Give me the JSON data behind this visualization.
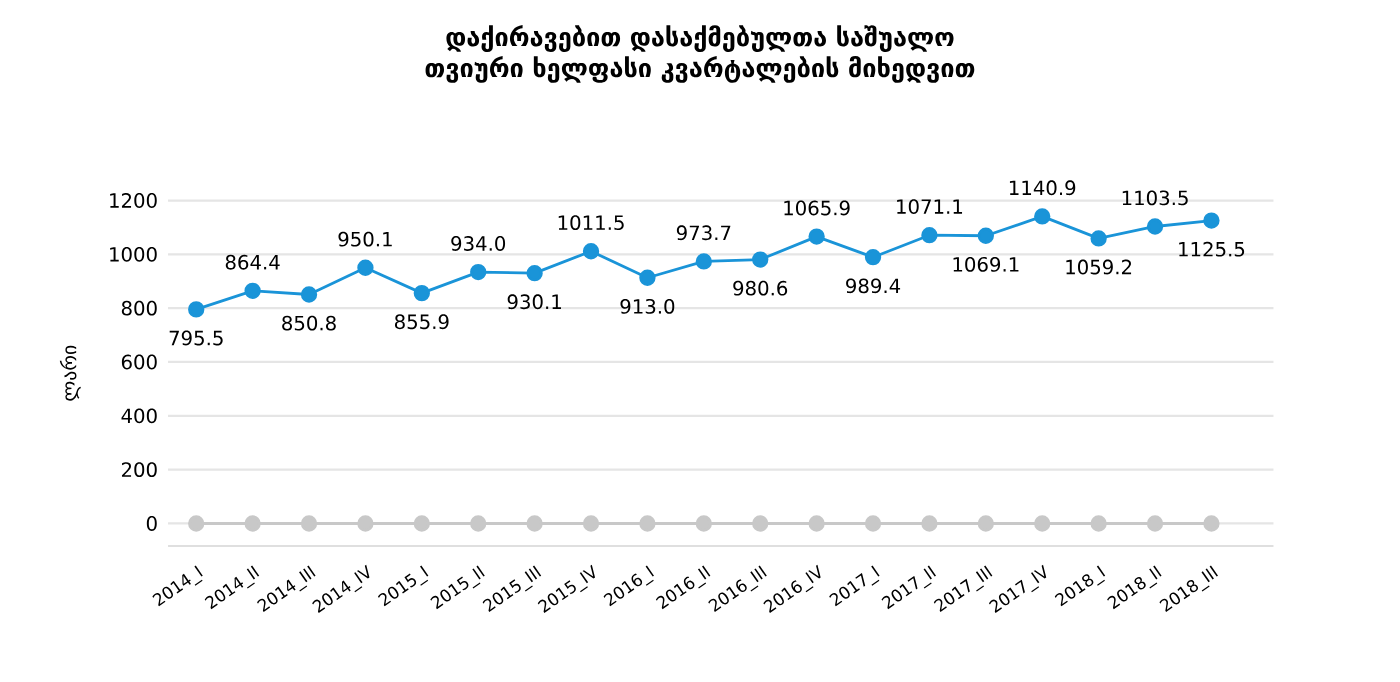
{
  "chart_data": {
    "type": "line",
    "title": "დაქირავებით დასაქმებულთა საშუალო თვიური ხელფასი კვარტალების მიხედვით",
    "ylabel": "ლარი",
    "categories": [
      "2014_I",
      "2014_II",
      "2014_III",
      "2014_IV",
      "2015_I",
      "2015_II",
      "2015_III",
      "2015_IV",
      "2016_I",
      "2016_II",
      "2016_III",
      "2016_IV",
      "2017_I",
      "2017_II",
      "2017_III",
      "2017_IV",
      "2018_I",
      "2018_II",
      "2018_III"
    ],
    "series": [
      {
        "color": "#1a94d8",
        "values": [
          795.5,
          864.4,
          850.8,
          950.1,
          855.9,
          934.0,
          930.1,
          1011.5,
          913.0,
          973.7,
          980.6,
          1065.9,
          989.4,
          1071.1,
          1069.1,
          1140.9,
          1059.2,
          1103.5,
          1125.5
        ],
        "value_labels": [
          "795.5",
          "864.4",
          "850.8",
          "950.1",
          "855.9",
          "934.0",
          "930.1",
          "1011.5",
          "913.0",
          "973.7",
          "980.6",
          "1065.9",
          "989.4",
          "1071.1",
          "1069.1",
          "1140.9",
          "1059.2",
          "1103.5",
          "1125.5"
        ]
      },
      {
        "color": "#c8c8c8",
        "values": [
          0,
          0,
          0,
          0,
          0,
          0,
          0,
          0,
          0,
          0,
          0,
          0,
          0,
          0,
          0,
          0,
          0,
          0,
          0
        ]
      }
    ],
    "ylim": [
      0,
      1200
    ],
    "yticks": [
      0,
      200,
      400,
      600,
      800,
      1000,
      1200
    ],
    "grid": "y",
    "marker": "circle",
    "line_style": "solid"
  }
}
